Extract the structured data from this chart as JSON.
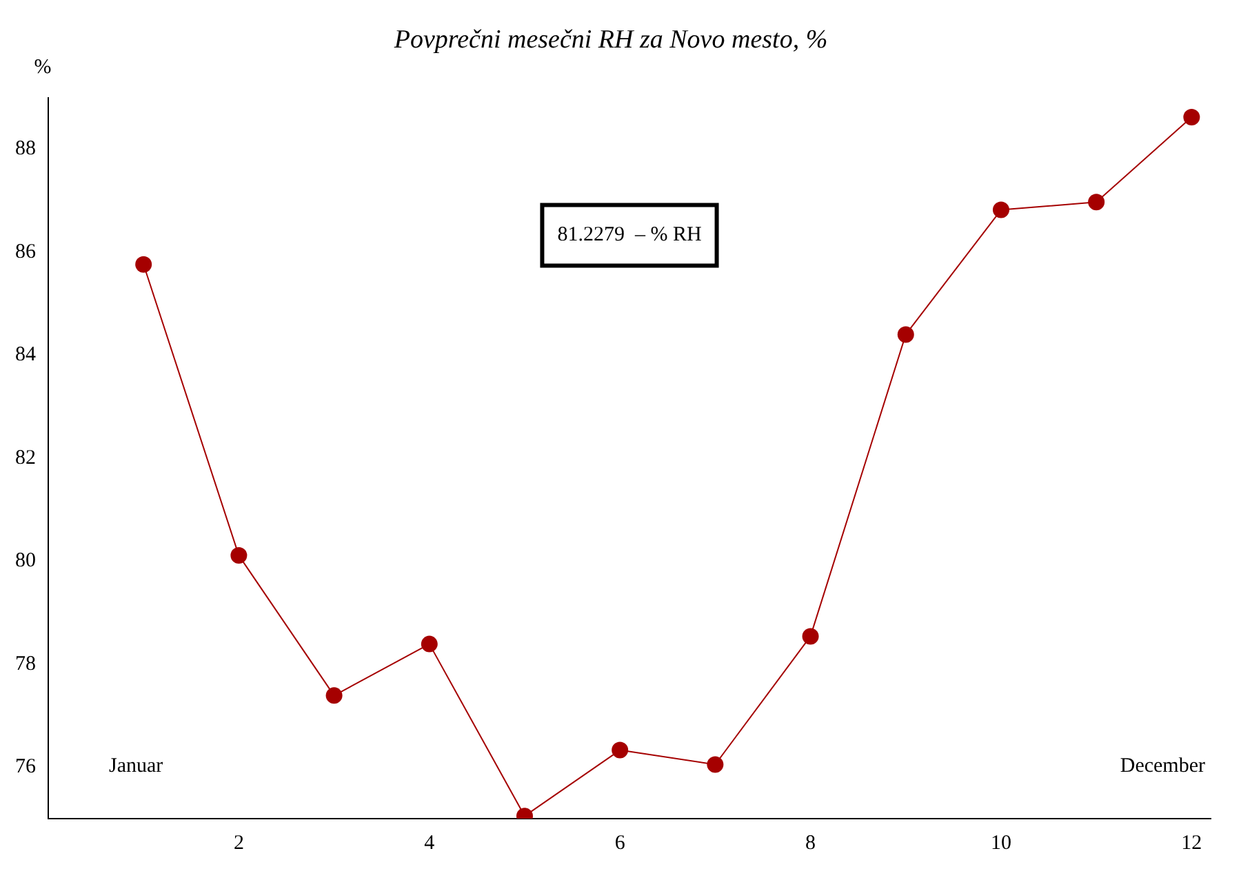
{
  "chart_data": {
    "type": "line",
    "title": "Povprečni mesečni RH za Novo mesto, %",
    "ylabel": "%",
    "x": [
      1,
      2,
      3,
      4,
      5,
      6,
      7,
      8,
      9,
      10,
      11,
      12
    ],
    "series": [
      {
        "color": "#a50000",
        "values": [
          85.76,
          80.11,
          77.39,
          78.39,
          75.05,
          76.33,
          76.05,
          78.54,
          84.4,
          86.82,
          86.97,
          88.62
        ]
      }
    ],
    "xlim": [
      0,
      12.2
    ],
    "xticks": [
      2,
      4,
      6,
      8,
      10,
      12
    ],
    "ylim": [
      75,
      89
    ],
    "yticks": [
      76,
      78,
      80,
      82,
      84,
      86,
      88
    ],
    "annotations": [
      "81.2279  – % RH",
      "Januar",
      "December"
    ],
    "marker": "circle",
    "line_style": "solid",
    "grid": false,
    "legend": false
  }
}
